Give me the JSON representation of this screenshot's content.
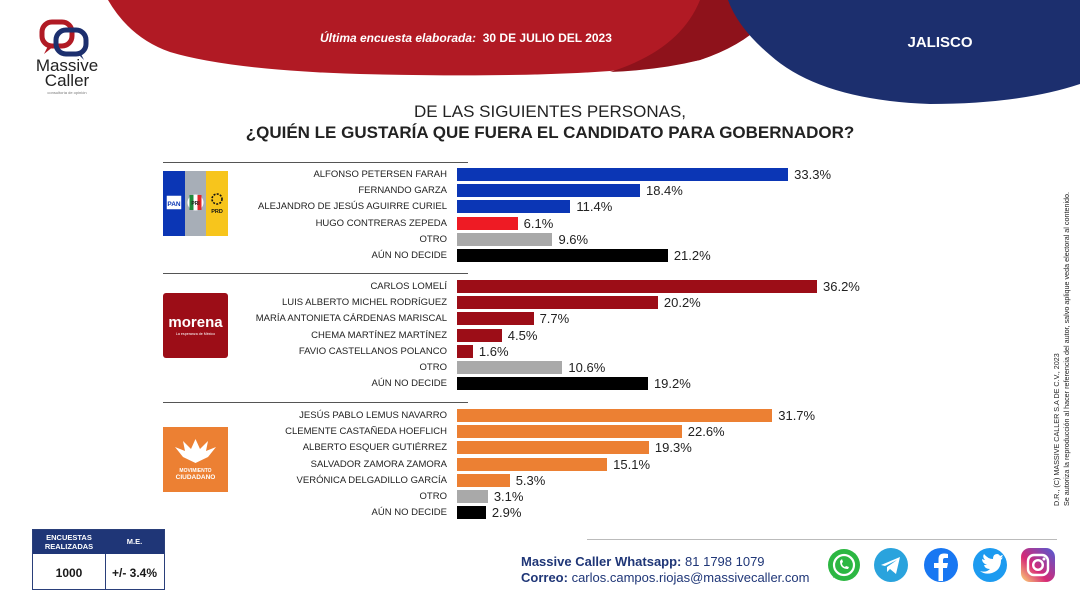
{
  "brand": {
    "name": "Massive\nCaller",
    "name_line1": "Massive",
    "name_line2": "Caller",
    "tagline": "consultoría de opinión"
  },
  "header": {
    "survey_label": "Última encuesta elaborada:",
    "survey_date": "30 DE JULIO DEL 2023",
    "state": "JALISCO"
  },
  "title": {
    "line1": "DE LAS SIGUIENTES PERSONAS,",
    "line2": "¿QUIÉN LE GUSTARÍA QUE FUERA EL CANDIDATO PARA GOBERNADOR?"
  },
  "colors": {
    "banner_red": "#b11a24",
    "banner_navy": "#1c2f6e",
    "pan_blue": "#0b36b5",
    "morena": "#9c0d17",
    "mc_orange": "#ec8033",
    "otro_gray": "#a9a9a9",
    "undecided_black": "#000000",
    "hugo_red": "#ee1b24"
  },
  "chart_data": {
    "type": "bar",
    "orientation": "horizontal",
    "title": "¿QUIÉN LE GUSTARÍA QUE FUERA EL CANDIDATO PARA GOBERNADOR?",
    "xlim": [
      0,
      40
    ],
    "unit": "%",
    "groups": [
      {
        "party": "PAN-PRI-PRD",
        "party_labels": [
          "PAN",
          "PRI",
          "PRD"
        ],
        "rows": [
          {
            "label": "ALFONSO PETERSEN FARAH",
            "value": 33.3,
            "display": "33.3%",
            "color": "#0b36b5"
          },
          {
            "label": "FERNANDO GARZA",
            "value": 18.4,
            "display": "18.4%",
            "color": "#0b36b5"
          },
          {
            "label": "ALEJANDRO DE JESÚS AGUIRRE CURIEL",
            "value": 11.4,
            "display": "11.4%",
            "color": "#0b36b5"
          },
          {
            "label": "HUGO CONTRERAS ZEPEDA",
            "value": 6.1,
            "display": "6.1%",
            "color": "#ee1b24"
          },
          {
            "label": "OTRO",
            "value": 9.6,
            "display": "9.6%",
            "color": "#a9a9a9"
          },
          {
            "label": "AÚN NO DECIDE",
            "value": 21.2,
            "display": "21.2%",
            "color": "#000000"
          }
        ]
      },
      {
        "party": "morena",
        "party_labels": [
          "morena",
          "La esperanza de México"
        ],
        "rows": [
          {
            "label": "CARLOS LOMELÍ",
            "value": 36.2,
            "display": "36.2%",
            "color": "#9c0d17"
          },
          {
            "label": "LUIS ALBERTO MICHEL RODRÍGUEZ",
            "value": 20.2,
            "display": "20.2%",
            "color": "#9c0d17"
          },
          {
            "label": "MARÍA ANTONIETA CÁRDENAS MARISCAL",
            "value": 7.7,
            "display": "7.7%",
            "color": "#9c0d17"
          },
          {
            "label": "CHEMA MARTÍNEZ MARTÍNEZ",
            "value": 4.5,
            "display": "4.5%",
            "color": "#9c0d17"
          },
          {
            "label": "FAVIO CASTELLANOS POLANCO",
            "value": 1.6,
            "display": "1.6%",
            "color": "#9c0d17"
          },
          {
            "label": "OTRO",
            "value": 10.6,
            "display": "10.6%",
            "color": "#a9a9a9"
          },
          {
            "label": "AÚN NO DECIDE",
            "value": 19.2,
            "display": "19.2%",
            "color": "#000000"
          }
        ]
      },
      {
        "party": "Movimiento Ciudadano",
        "party_labels": [
          "MOVIMIENTO",
          "CIUDADANO"
        ],
        "rows": [
          {
            "label": "JESÚS PABLO LEMUS NAVARRO",
            "value": 31.7,
            "display": "31.7%",
            "color": "#ec8033"
          },
          {
            "label": "CLEMENTE CASTAÑEDA HOEFLICH",
            "value": 22.6,
            "display": "22.6%",
            "color": "#ec8033"
          },
          {
            "label": "ALBERTO ESQUER GUTIÉRREZ",
            "value": 19.3,
            "display": "19.3%",
            "color": "#ec8033"
          },
          {
            "label": "SALVADOR ZAMORA ZAMORA",
            "value": 15.1,
            "display": "15.1%",
            "color": "#ec8033"
          },
          {
            "label": "VERÓNICA DELGADILLO GARCÍA",
            "value": 5.3,
            "display": "5.3%",
            "color": "#ec8033"
          },
          {
            "label": "OTRO",
            "value": 3.1,
            "display": "3.1%",
            "color": "#a9a9a9"
          },
          {
            "label": "AÚN NO DECIDE",
            "value": 2.9,
            "display": "2.9%",
            "color": "#000000"
          }
        ]
      }
    ]
  },
  "methodology": {
    "col1_header_line1": "ENCUESTAS",
    "col1_header_line2": "REALIZADAS",
    "col2_header": "M.E.",
    "col1_value": "1000",
    "col2_value": "+/- 3.4%"
  },
  "footer": {
    "whatsapp_label": "Massive Caller Whatsapp:",
    "whatsapp_number": "81 1798 1079",
    "email_label": "Correo:",
    "email": "carlos.campos.riojas@massivecaller.com",
    "social": [
      {
        "name": "whatsapp-icon",
        "color": "#2cb742"
      },
      {
        "name": "telegram-icon",
        "color": "#2aa3dd"
      },
      {
        "name": "facebook-icon",
        "color": "#1877f2"
      },
      {
        "name": "twitter-icon",
        "color": "#1d9bf0"
      },
      {
        "name": "instagram-icon",
        "color": "#d62976"
      }
    ]
  },
  "side_note": {
    "line1": "D.R., (C) MASSIVE CALLER S.A DE C.V., 2023",
    "line2": "Se autoriza la reproducción al hacer referencia del autor, salvo aplique veda electoral al contenido."
  }
}
